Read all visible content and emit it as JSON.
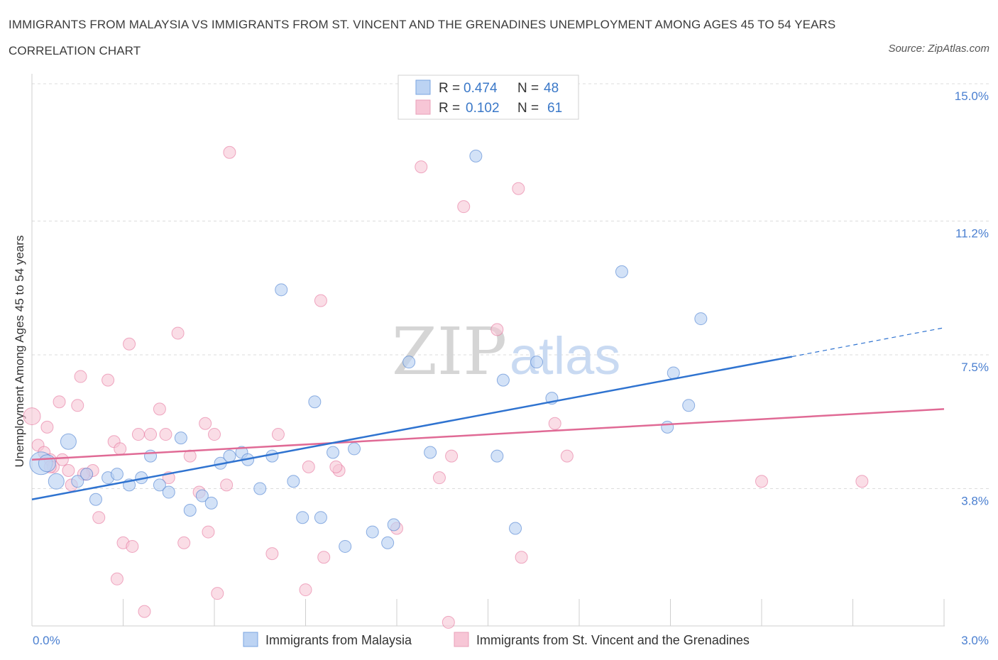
{
  "title": "IMMIGRANTS FROM MALAYSIA VS IMMIGRANTS FROM ST. VINCENT AND THE GRENADINES UNEMPLOYMENT AMONG AGES 45 TO 54 YEARS CORRELATION CHART",
  "source": "Source: ZipAtlas.com",
  "watermark": {
    "part1": "ZIP",
    "part2": "atlas"
  },
  "colors": {
    "blue": "#4a7fd0",
    "blue_fill": "#bcd3f3",
    "blue_line": "#2f73d0",
    "pink": "#e36a96",
    "pink_fill": "#f7c6d6",
    "pink_line": "#e06a95"
  },
  "legend": {
    "rows": [
      {
        "r_label": "R =",
        "r_value": "0.474",
        "n_label": "N =",
        "n_value": "48"
      },
      {
        "r_label": "R =",
        "r_value": "0.102",
        "n_label": "N =",
        "n_value": "61"
      }
    ]
  },
  "bottom_legend": [
    "Immigrants from Malaysia",
    "Immigrants from St. Vincent and the Grenadines"
  ],
  "chart_data": {
    "type": "scatter",
    "title": "IMMIGRANTS FROM MALAYSIA VS IMMIGRANTS FROM ST. VINCENT AND THE GRENADINES UNEMPLOYMENT AMONG AGES 45 TO 54 YEARS CORRELATION CHART",
    "xlabel": "",
    "ylabel": "Unemployment Among Ages 45 to 54 years",
    "xlim": [
      0,
      3.0
    ],
    "ylim": [
      0,
      15.0
    ],
    "x_tick_labels": [
      "0.0%",
      "3.0%"
    ],
    "y_ticks": [
      3.8,
      7.5,
      11.2,
      15.0
    ],
    "y_tick_labels": [
      "3.8%",
      "7.5%",
      "11.2%",
      "15.0%"
    ],
    "grid": true,
    "legend_position": "top-center",
    "series": [
      {
        "name": "Immigrants from Malaysia",
        "r": 0.474,
        "n": 48,
        "trend": {
          "x0": 0.0,
          "y0": 3.5,
          "x1": 2.5,
          "y1": 7.45,
          "dash_to_x": 3.0,
          "dash_to_y": 8.25
        },
        "points": [
          [
            0.03,
            4.5
          ],
          [
            0.05,
            4.5
          ],
          [
            0.08,
            4.0
          ],
          [
            0.12,
            5.1
          ],
          [
            0.15,
            4.0
          ],
          [
            0.18,
            4.2
          ],
          [
            0.21,
            3.5
          ],
          [
            0.25,
            4.1
          ],
          [
            0.28,
            4.2
          ],
          [
            0.32,
            3.9
          ],
          [
            0.36,
            4.1
          ],
          [
            0.39,
            4.7
          ],
          [
            0.42,
            3.9
          ],
          [
            0.45,
            3.7
          ],
          [
            0.49,
            5.2
          ],
          [
            0.52,
            3.2
          ],
          [
            0.56,
            3.6
          ],
          [
            0.59,
            3.4
          ],
          [
            0.62,
            4.5
          ],
          [
            0.65,
            4.7
          ],
          [
            0.69,
            4.8
          ],
          [
            0.71,
            4.6
          ],
          [
            0.75,
            3.8
          ],
          [
            0.79,
            4.7
          ],
          [
            0.82,
            9.3
          ],
          [
            0.86,
            4.0
          ],
          [
            0.89,
            3.0
          ],
          [
            0.93,
            6.2
          ],
          [
            0.95,
            3.0
          ],
          [
            0.99,
            4.8
          ],
          [
            1.03,
            2.2
          ],
          [
            1.06,
            4.9
          ],
          [
            1.12,
            2.6
          ],
          [
            1.17,
            2.3
          ],
          [
            1.19,
            2.8
          ],
          [
            1.24,
            7.3
          ],
          [
            1.31,
            4.8
          ],
          [
            1.46,
            13.0
          ],
          [
            1.53,
            4.7
          ],
          [
            1.55,
            6.8
          ],
          [
            1.59,
            2.7
          ],
          [
            1.66,
            7.3
          ],
          [
            1.71,
            6.3
          ],
          [
            1.94,
            9.8
          ],
          [
            2.09,
            5.5
          ],
          [
            2.11,
            7.0
          ],
          [
            2.16,
            6.1
          ],
          [
            2.2,
            8.5
          ]
        ]
      },
      {
        "name": "Immigrants from St. Vincent and the Grenadines",
        "r": 0.102,
        "n": 61,
        "trend": {
          "x0": 0.0,
          "y0": 4.6,
          "x1": 3.0,
          "y1": 6.0
        },
        "points": [
          [
            0.0,
            5.8
          ],
          [
            0.02,
            5.0
          ],
          [
            0.04,
            4.8
          ],
          [
            0.05,
            5.5
          ],
          [
            0.06,
            4.6
          ],
          [
            0.07,
            4.4
          ],
          [
            0.09,
            6.2
          ],
          [
            0.1,
            4.6
          ],
          [
            0.12,
            4.3
          ],
          [
            0.13,
            3.9
          ],
          [
            0.15,
            6.1
          ],
          [
            0.16,
            6.9
          ],
          [
            0.18,
            4.2
          ],
          [
            0.2,
            4.3
          ],
          [
            0.22,
            3.0
          ],
          [
            0.25,
            6.8
          ],
          [
            0.27,
            5.1
          ],
          [
            0.29,
            4.9
          ],
          [
            0.3,
            2.3
          ],
          [
            0.32,
            7.8
          ],
          [
            0.33,
            2.2
          ],
          [
            0.35,
            5.3
          ],
          [
            0.37,
            0.4
          ],
          [
            0.39,
            5.3
          ],
          [
            0.42,
            6.0
          ],
          [
            0.44,
            5.3
          ],
          [
            0.45,
            4.1
          ],
          [
            0.48,
            8.1
          ],
          [
            0.5,
            2.3
          ],
          [
            0.52,
            4.7
          ],
          [
            0.55,
            3.7
          ],
          [
            0.57,
            5.6
          ],
          [
            0.58,
            2.6
          ],
          [
            0.6,
            5.3
          ],
          [
            0.61,
            0.9
          ],
          [
            0.64,
            3.9
          ],
          [
            0.65,
            13.1
          ],
          [
            0.79,
            2.0
          ],
          [
            0.81,
            5.3
          ],
          [
            0.9,
            1.0
          ],
          [
            0.91,
            4.4
          ],
          [
            0.95,
            9.0
          ],
          [
            0.96,
            1.9
          ],
          [
            1.01,
            4.3
          ],
          [
            1.2,
            2.7
          ],
          [
            1.28,
            12.7
          ],
          [
            1.34,
            4.1
          ],
          [
            1.37,
            0.1
          ],
          [
            1.38,
            4.7
          ],
          [
            1.42,
            11.6
          ],
          [
            1.53,
            8.2
          ],
          [
            1.6,
            12.1
          ],
          [
            1.61,
            1.9
          ],
          [
            1.72,
            5.6
          ],
          [
            1.76,
            4.7
          ],
          [
            2.4,
            4.0
          ],
          [
            2.73,
            4.0
          ],
          [
            0.28,
            1.3
          ],
          [
            0.06,
            4.4
          ],
          [
            0.17,
            4.2
          ],
          [
            1.0,
            4.4
          ]
        ]
      }
    ]
  }
}
